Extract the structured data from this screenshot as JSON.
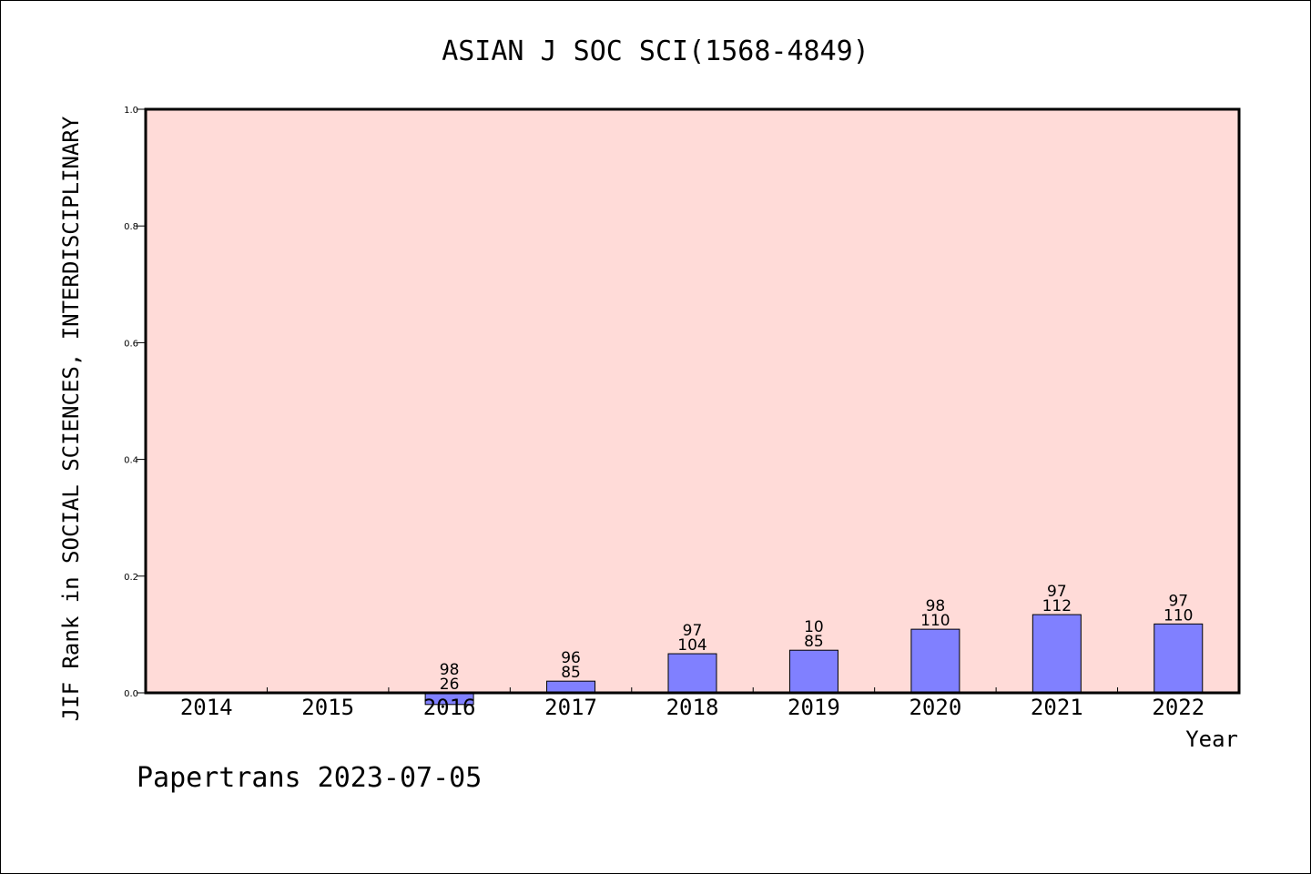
{
  "chart_data": {
    "type": "bar",
    "title": "ASIAN J SOC SCI(1568-4849)",
    "xlabel": "Year",
    "ylabel": "JIF Rank in SOCIAL SCIENCES, INTERDISCIPLINARY",
    "ylim": [
      0,
      1.0
    ],
    "yticks": [
      "0.0",
      "0.2",
      "0.4",
      "0.6",
      "0.8",
      "1.0"
    ],
    "categories": [
      "2014",
      "2015",
      "2016",
      "2017",
      "2018",
      "2019",
      "2020",
      "2021",
      "2022"
    ],
    "values": [
      null,
      null,
      -0.02,
      0.02,
      0.067,
      0.073,
      0.109,
      0.134,
      0.118
    ],
    "label_top": [
      "",
      "",
      "98",
      "96",
      "97",
      "10",
      "98",
      "97",
      "97"
    ],
    "label_bottom": [
      "",
      "",
      "26",
      "85",
      "104",
      "85",
      "110",
      "112",
      "110"
    ],
    "bar_color": "#8080ff",
    "plot_background": "#ffdbd8",
    "grid": false,
    "legend": "none"
  },
  "footer": {
    "credit": "Papertrans 2023-07-05"
  }
}
